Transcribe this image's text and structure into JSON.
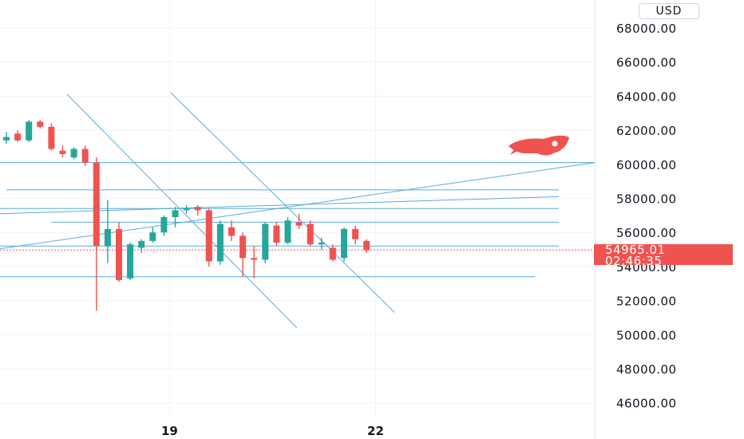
{
  "header": {
    "currency_label": "USD"
  },
  "last_price": {
    "value": "54965.01",
    "countdown": "02:46:35"
  },
  "colors": {
    "up": "#26a69a",
    "down": "#ef5350",
    "drawing": "#5aabdc",
    "grid": "#f0f3fa",
    "axis_text": "#131722"
  },
  "icons": {
    "marker": "rocket-icon"
  },
  "chart_data": {
    "type": "candlestick",
    "y_axis": {
      "ticks": [
        "68000.00",
        "66000.00",
        "64000.00",
        "62000.00",
        "60000.00",
        "58000.00",
        "56000.00",
        "54000.00",
        "52000.00",
        "50000.00",
        "48000.00",
        "46000.00"
      ],
      "tick_values": [
        68000,
        66000,
        64000,
        62000,
        60000,
        58000,
        56000,
        54000,
        52000,
        50000,
        48000,
        46000
      ],
      "position": "right"
    },
    "x_axis": {
      "ticks": [
        "19",
        "22"
      ]
    },
    "ylim": [
      45000,
      69300
    ],
    "candles": [
      {
        "o": 61400,
        "h": 61900,
        "l": 61200,
        "c": 61600
      },
      {
        "o": 61800,
        "h": 62000,
        "l": 61300,
        "c": 61400
      },
      {
        "o": 61400,
        "h": 62600,
        "l": 61300,
        "c": 62500
      },
      {
        "o": 62500,
        "h": 62600,
        "l": 62100,
        "c": 62200
      },
      {
        "o": 62200,
        "h": 62400,
        "l": 60800,
        "c": 60900
      },
      {
        "o": 60800,
        "h": 61100,
        "l": 60400,
        "c": 60600
      },
      {
        "o": 60400,
        "h": 61000,
        "l": 60300,
        "c": 60900
      },
      {
        "o": 60900,
        "h": 61100,
        "l": 59900,
        "c": 60100
      },
      {
        "o": 60100,
        "h": 60400,
        "l": 51400,
        "c": 55200
      },
      {
        "o": 55200,
        "h": 57900,
        "l": 54200,
        "c": 56200
      },
      {
        "o": 56200,
        "h": 56600,
        "l": 53100,
        "c": 53200
      },
      {
        "o": 53300,
        "h": 55400,
        "l": 53200,
        "c": 55300
      },
      {
        "o": 55100,
        "h": 55600,
        "l": 54800,
        "c": 55500
      },
      {
        "o": 55500,
        "h": 56300,
        "l": 55400,
        "c": 56000
      },
      {
        "o": 56000,
        "h": 57000,
        "l": 55800,
        "c": 56900
      },
      {
        "o": 56900,
        "h": 57500,
        "l": 56300,
        "c": 57300
      },
      {
        "o": 57300,
        "h": 57600,
        "l": 57100,
        "c": 57400
      },
      {
        "o": 57500,
        "h": 57600,
        "l": 57000,
        "c": 57300
      },
      {
        "o": 57300,
        "h": 57400,
        "l": 54000,
        "c": 54300
      },
      {
        "o": 54300,
        "h": 56700,
        "l": 54100,
        "c": 56500
      },
      {
        "o": 56300,
        "h": 56700,
        "l": 55500,
        "c": 55800
      },
      {
        "o": 55800,
        "h": 56000,
        "l": 53400,
        "c": 54500
      },
      {
        "o": 54500,
        "h": 55200,
        "l": 53300,
        "c": 54400
      },
      {
        "o": 54400,
        "h": 56600,
        "l": 54200,
        "c": 56500
      },
      {
        "o": 56400,
        "h": 56600,
        "l": 55200,
        "c": 55400
      },
      {
        "o": 55400,
        "h": 56900,
        "l": 55300,
        "c": 56700
      },
      {
        "o": 56600,
        "h": 57100,
        "l": 56200,
        "c": 56400
      },
      {
        "o": 56500,
        "h": 56700,
        "l": 55200,
        "c": 55300
      },
      {
        "o": 55300,
        "h": 55700,
        "l": 55000,
        "c": 55400
      },
      {
        "o": 55100,
        "h": 55300,
        "l": 54300,
        "c": 54400
      },
      {
        "o": 54500,
        "h": 56300,
        "l": 54300,
        "c": 56200
      },
      {
        "o": 56200,
        "h": 56400,
        "l": 55300,
        "c": 55600
      },
      {
        "o": 55500,
        "h": 55600,
        "l": 54800,
        "c": 54965
      }
    ],
    "drawings": {
      "horizontal": [
        60100,
        58500,
        57400,
        56600,
        55200,
        53400
      ],
      "trend_up": [
        [
          -1,
          55000,
          31,
          60100
        ]
      ],
      "trend_down": [
        [
          5.4,
          64100,
          25.8,
          50400
        ],
        [
          14.6,
          64200,
          34.5,
          51300
        ]
      ]
    }
  }
}
